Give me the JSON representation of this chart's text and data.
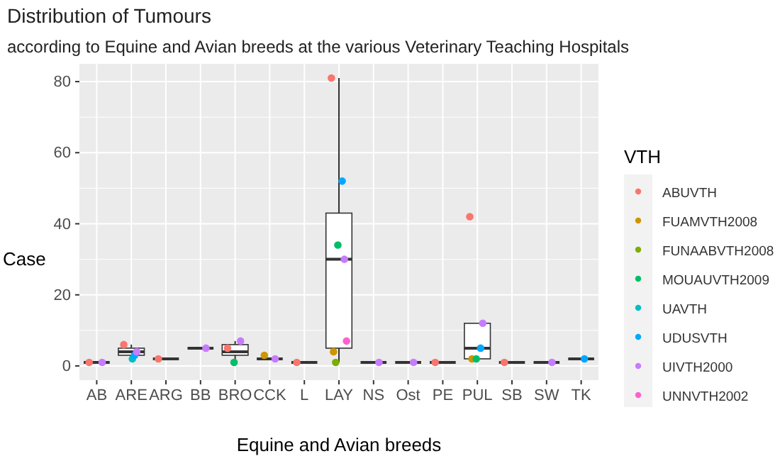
{
  "chart_data": {
    "type": "box",
    "title": "Distribution of Tumours",
    "subtitle": "according to Equine and Avian breeds at the various Veterinary Teaching Hospitals",
    "xlabel": "Equine and Avian breeds",
    "ylabel": "Case",
    "legend_title": "VTH",
    "categories": [
      "AB",
      "ARE",
      "ARG",
      "BB",
      "BRO",
      "CCK",
      "L",
      "LAY",
      "NS",
      "Ost",
      "PE",
      "PUL",
      "SB",
      "SW",
      "TK"
    ],
    "boxes": [
      {
        "low": 1,
        "q1": 1,
        "median": 1,
        "q3": 1,
        "high": 1
      },
      {
        "low": 2,
        "q1": 3,
        "median": 4,
        "q3": 5,
        "high": 6
      },
      {
        "low": 2,
        "q1": 2,
        "median": 2,
        "q3": 2,
        "high": 2
      },
      {
        "low": 5,
        "q1": 5,
        "median": 5,
        "q3": 5,
        "high": 5
      },
      {
        "low": 1,
        "q1": 3,
        "median": 4,
        "q3": 6,
        "high": 7
      },
      {
        "low": 2,
        "q1": 2,
        "median": 2,
        "q3": 2,
        "high": 2
      },
      {
        "low": 1,
        "q1": 1,
        "median": 1,
        "q3": 1,
        "high": 1
      },
      {
        "low": 1,
        "q1": 5,
        "median": 30,
        "q3": 43,
        "high": 81
      },
      {
        "low": 1,
        "q1": 1,
        "median": 1,
        "q3": 1,
        "high": 1
      },
      {
        "low": 1,
        "q1": 1,
        "median": 1,
        "q3": 1,
        "high": 1
      },
      {
        "low": 1,
        "q1": 1,
        "median": 1,
        "q3": 1,
        "high": 1
      },
      {
        "low": 2,
        "q1": 2,
        "median": 5,
        "q3": 12,
        "high": 12
      },
      {
        "low": 1,
        "q1": 1,
        "median": 1,
        "q3": 1,
        "high": 1
      },
      {
        "low": 1,
        "q1": 1,
        "median": 1,
        "q3": 1,
        "high": 1
      },
      {
        "low": 2,
        "q1": 2,
        "median": 2,
        "q3": 2,
        "high": 2
      }
    ],
    "series": [
      {
        "type": "scatter",
        "name": "ABUVTH",
        "color": "#f8766d",
        "x": [
          "AB",
          "ARE",
          "ARG",
          "BRO",
          "L",
          "LAY",
          "PE",
          "PUL",
          "SB"
        ],
        "values": [
          1,
          6,
          2,
          5,
          1,
          81,
          1,
          42,
          1
        ]
      },
      {
        "type": "scatter",
        "name": "FUAMVTH2008",
        "color": "#cd9600",
        "x": [
          "CCK",
          "LAY",
          "PUL"
        ],
        "values": [
          3,
          4,
          2
        ]
      },
      {
        "type": "scatter",
        "name": "FUNAABVTH2008",
        "color": "#7cae00",
        "x": [
          "LAY"
        ],
        "values": [
          1
        ]
      },
      {
        "type": "scatter",
        "name": "MOUAUVTH2009",
        "color": "#00be67",
        "x": [
          "BRO",
          "LAY",
          "PUL"
        ],
        "values": [
          1,
          34,
          2
        ]
      },
      {
        "type": "scatter",
        "name": "UAVTH",
        "color": "#00bfc4",
        "x": [
          "ARE"
        ],
        "values": [
          2
        ]
      },
      {
        "type": "scatter",
        "name": "UDUSVTH",
        "color": "#00a9ff",
        "x": [
          "ARE",
          "LAY",
          "PUL",
          "TK"
        ],
        "values": [
          3,
          52,
          5,
          2
        ]
      },
      {
        "type": "scatter",
        "name": "UIVTH2000",
        "color": "#c77cff",
        "x": [
          "AB",
          "ARE",
          "BB",
          "BRO",
          "CCK",
          "LAY",
          "NS",
          "Ost",
          "PUL",
          "SW"
        ],
        "values": [
          1,
          4,
          5,
          7,
          2,
          30,
          1,
          1,
          12,
          1
        ]
      },
      {
        "type": "scatter",
        "name": "UNNVTH2002",
        "color": "#ff61cc",
        "x": [
          "LAY"
        ],
        "values": [
          7
        ]
      }
    ],
    "color": "#333333",
    "ylim": [
      -4,
      85
    ],
    "yticks": [
      0,
      20,
      40,
      60,
      80
    ],
    "grid": true,
    "legend": "right",
    "marker": "circle"
  }
}
